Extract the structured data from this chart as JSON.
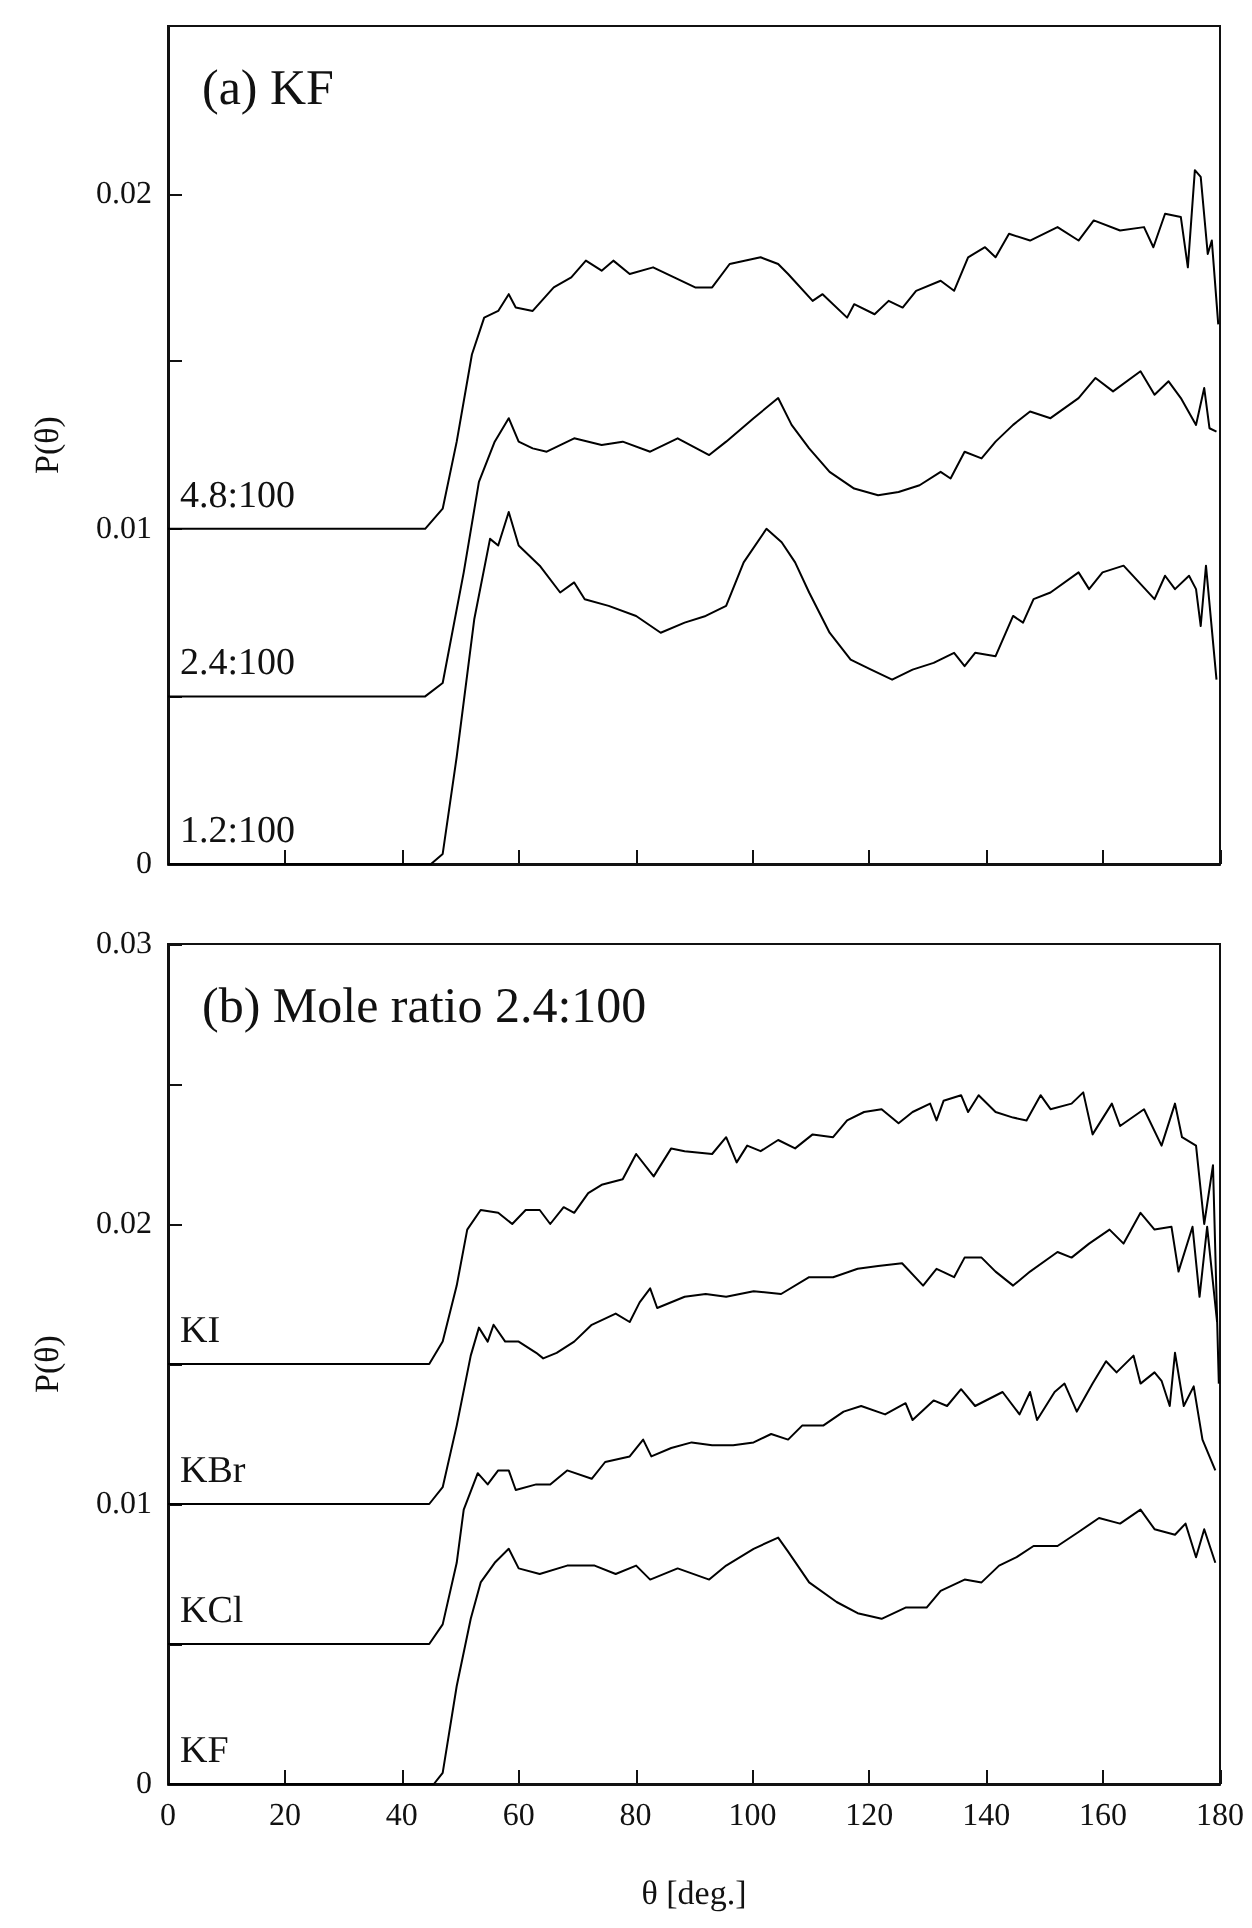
{
  "chart_data": [
    {
      "type": "line",
      "title": "(a) KF",
      "ylabel": "P(θ)",
      "xlim": [
        0,
        180
      ],
      "xticks": [
        0,
        20,
        40,
        60,
        80,
        100,
        120,
        140,
        160,
        180
      ],
      "ylim": [
        0,
        0.025
      ],
      "yticks": [
        0,
        {
          "value": 0.005,
          "label": null
        },
        0.01,
        {
          "value": 0.015,
          "label": null
        },
        0.02
      ],
      "tick_labels": "y",
      "grid": false,
      "legend": false,
      "marker": "none",
      "line_style": "solid",
      "series": [
        {
          "name": "4.8:100",
          "color": "#000000",
          "x": [
            0,
            44,
            47,
            49.4,
            52,
            54.1,
            56.5,
            58.3,
            59.5,
            62.4,
            66,
            69,
            71.5,
            74.2,
            76.2,
            79,
            83,
            86.6,
            90.2,
            93.1,
            96.1,
            101.4,
            104.4,
            106.1,
            110.3,
            112,
            116.2,
            117.4,
            120.9,
            123.3,
            125.7,
            128,
            132.2,
            134.5,
            136.9,
            139.8,
            141.6,
            143.9,
            147.5,
            152.2,
            155.8,
            158.4,
            162.9,
            167,
            168.6,
            170.6,
            173.3,
            174.5,
            175.7,
            176.7,
            177.9,
            178.6,
            179.7
          ],
          "values": [
            0.01,
            0.01,
            0.0106,
            0.0126,
            0.0152,
            0.0163,
            0.0165,
            0.017,
            0.0166,
            0.0165,
            0.0172,
            0.0175,
            0.018,
            0.0177,
            0.018,
            0.0176,
            0.0178,
            0.0175,
            0.0172,
            0.0172,
            0.0179,
            0.0181,
            0.0179,
            0.0176,
            0.0168,
            0.017,
            0.0163,
            0.0167,
            0.0164,
            0.0168,
            0.0166,
            0.0171,
            0.0174,
            0.0171,
            0.0181,
            0.0184,
            0.0181,
            0.0188,
            0.0186,
            0.019,
            0.0186,
            0.0192,
            0.0189,
            0.019,
            0.0184,
            0.0194,
            0.0193,
            0.0178,
            0.0207,
            0.0205,
            0.0182,
            0.0186,
            0.0161
          ]
        },
        {
          "name": "2.4:100",
          "color": "#000000",
          "x": [
            0,
            44,
            47,
            50.6,
            53.2,
            55.9,
            58.3,
            60,
            62.4,
            64.8,
            69.5,
            74.2,
            77.8,
            82.5,
            87.2,
            92.6,
            95.5,
            100.2,
            104.4,
            106.7,
            109.7,
            113.2,
            117.4,
            121.5,
            125,
            128.6,
            132.2,
            133.9,
            136.3,
            139.2,
            141.6,
            144.6,
            147.5,
            151,
            155.8,
            158.7,
            161.7,
            166.4,
            168.8,
            171.2,
            173.3,
            175.9,
            177.3,
            178.2,
            179.4
          ],
          "values": [
            0.005,
            0.005,
            0.0054,
            0.0087,
            0.0114,
            0.0126,
            0.0133,
            0.0126,
            0.0124,
            0.0123,
            0.0127,
            0.0125,
            0.0126,
            0.0123,
            0.0127,
            0.0122,
            0.0126,
            0.0133,
            0.0139,
            0.0131,
            0.0124,
            0.0117,
            0.0112,
            0.011,
            0.0111,
            0.0113,
            0.0117,
            0.0115,
            0.0123,
            0.0121,
            0.0126,
            0.0131,
            0.0135,
            0.0133,
            0.0139,
            0.0145,
            0.0141,
            0.0147,
            0.014,
            0.0144,
            0.0139,
            0.0131,
            0.0142,
            0.013,
            0.0129
          ]
        },
        {
          "name": "1.2:100",
          "color": "#000000",
          "x": [
            0,
            45,
            47,
            49.4,
            52.4,
            55.1,
            56.5,
            58.3,
            60,
            63.6,
            67.1,
            69.5,
            71.3,
            75.4,
            80.1,
            84.3,
            88.4,
            92,
            95.5,
            98.5,
            102.4,
            105,
            107.3,
            109.7,
            113.2,
            116.8,
            120.3,
            123.9,
            127.4,
            131,
            134.5,
            136.3,
            138.1,
            141.6,
            144.6,
            146.3,
            148.1,
            151,
            155.8,
            157.6,
            159.9,
            163.5,
            168.8,
            170.6,
            172.3,
            174.7,
            175.9,
            176.7,
            177.6,
            179.4
          ],
          "values": [
            0,
            0,
            0.0003,
            0.0032,
            0.0073,
            0.0097,
            0.0095,
            0.0105,
            0.0095,
            0.0089,
            0.0081,
            0.0084,
            0.0079,
            0.0077,
            0.0074,
            0.0069,
            0.0072,
            0.0074,
            0.0077,
            0.009,
            0.01,
            0.0096,
            0.009,
            0.0081,
            0.0069,
            0.0061,
            0.0058,
            0.0055,
            0.0058,
            0.006,
            0.0063,
            0.0059,
            0.0063,
            0.0062,
            0.0074,
            0.0072,
            0.0079,
            0.0081,
            0.0087,
            0.0082,
            0.0087,
            0.0089,
            0.0079,
            0.0086,
            0.0082,
            0.0086,
            0.0082,
            0.0071,
            0.0089,
            0.0055
          ]
        }
      ]
    },
    {
      "type": "line",
      "title": "(b) Mole ratio 2.4:100",
      "xlabel": "θ [deg.]",
      "ylabel": "P(θ)",
      "xlim": [
        0,
        180
      ],
      "xticks": [
        0,
        20,
        40,
        60,
        80,
        100,
        120,
        140,
        160,
        180
      ],
      "ylim": [
        0,
        0.03
      ],
      "yticks": [
        0,
        {
          "value": 0.005,
          "label": null
        },
        0.01,
        {
          "value": 0.015,
          "label": null
        },
        0.02,
        {
          "value": 0.025,
          "label": null
        },
        0.03
      ],
      "grid": false,
      "legend": false,
      "marker": "none",
      "line_style": "solid",
      "series": [
        {
          "name": "KI",
          "color": "#000000",
          "x": [
            0,
            44.7,
            47,
            49.4,
            51.2,
            53.5,
            56.5,
            58.9,
            61.2,
            63.6,
            65.4,
            67.7,
            69.5,
            71.9,
            74.2,
            77.8,
            80.1,
            83.1,
            86.1,
            88.4,
            93.1,
            95.5,
            97.3,
            99.1,
            101.4,
            104.4,
            107.3,
            110.3,
            113.8,
            116.2,
            119.1,
            122.1,
            125,
            127.4,
            130.4,
            131.5,
            132.7,
            135.7,
            136.9,
            138.7,
            141.6,
            144.6,
            146.9,
            149.3,
            151,
            154.6,
            156.6,
            158.2,
            161.5,
            162.9,
            167,
            170,
            172.3,
            173.5,
            175.9,
            177.3,
            178.8,
            179.8
          ],
          "values": [
            0.015,
            0.015,
            0.0158,
            0.0178,
            0.0198,
            0.0205,
            0.0204,
            0.02,
            0.0205,
            0.0205,
            0.02,
            0.0206,
            0.0204,
            0.0211,
            0.0214,
            0.0216,
            0.0225,
            0.0217,
            0.0227,
            0.0226,
            0.0225,
            0.0231,
            0.0222,
            0.0228,
            0.0226,
            0.023,
            0.0227,
            0.0232,
            0.0231,
            0.0237,
            0.024,
            0.0241,
            0.0236,
            0.024,
            0.0243,
            0.0237,
            0.0244,
            0.0246,
            0.024,
            0.0246,
            0.024,
            0.0238,
            0.0237,
            0.0246,
            0.0241,
            0.0243,
            0.0247,
            0.0232,
            0.0243,
            0.0235,
            0.0241,
            0.0228,
            0.0243,
            0.0231,
            0.0228,
            0.02,
            0.0221,
            0.0143
          ]
        },
        {
          "name": "KBr",
          "color": "#000000",
          "x": [
            0,
            44.7,
            47,
            49.4,
            51.8,
            53.2,
            54.7,
            55.7,
            57.7,
            60,
            63,
            64.2,
            66.5,
            69.5,
            72.5,
            76.6,
            79,
            80.7,
            82.5,
            83.7,
            88.4,
            92,
            95.5,
            100.2,
            104.9,
            109.7,
            113.8,
            118,
            121.5,
            125.6,
            129.2,
            131.5,
            134.5,
            136.3,
            139.2,
            141.6,
            144.6,
            147.5,
            152.2,
            154.6,
            157.6,
            161.1,
            163.5,
            166.4,
            168.8,
            171.7,
            172.9,
            175.3,
            176.5,
            177.8,
            179.5
          ],
          "values": [
            0.01,
            0.01,
            0.0106,
            0.0128,
            0.0153,
            0.0163,
            0.0158,
            0.0164,
            0.0158,
            0.0158,
            0.0154,
            0.0152,
            0.0154,
            0.0158,
            0.0164,
            0.0168,
            0.0165,
            0.0172,
            0.0177,
            0.017,
            0.0174,
            0.0175,
            0.0174,
            0.0176,
            0.0175,
            0.0181,
            0.0181,
            0.0184,
            0.0185,
            0.0186,
            0.0178,
            0.0184,
            0.0181,
            0.0188,
            0.0188,
            0.0183,
            0.0178,
            0.0183,
            0.019,
            0.0188,
            0.0193,
            0.0198,
            0.0193,
            0.0204,
            0.0198,
            0.0199,
            0.0183,
            0.0199,
            0.0174,
            0.0199,
            0.0165
          ]
        },
        {
          "name": "KCl",
          "color": "#000000",
          "x": [
            0,
            44.7,
            47,
            49.4,
            50.6,
            53,
            54.7,
            56.5,
            58.3,
            59.5,
            63,
            65.4,
            68.3,
            72.5,
            74.8,
            79,
            81.3,
            82.7,
            86.1,
            89.6,
            93.1,
            96.7,
            100.2,
            103.2,
            106.1,
            108.5,
            112.1,
            115.6,
            118.6,
            122.7,
            126.2,
            127.4,
            131,
            133.3,
            135.7,
            138.1,
            142.8,
            145.7,
            147.5,
            148.7,
            151.7,
            153.4,
            155.5,
            158.2,
            160.5,
            162.3,
            165.2,
            166.4,
            168.8,
            170,
            171.4,
            172.3,
            173.8,
            175.5,
            177,
            179.2
          ],
          "values": [
            0.005,
            0.005,
            0.0057,
            0.0079,
            0.0098,
            0.0111,
            0.0107,
            0.0112,
            0.0112,
            0.0105,
            0.0107,
            0.0107,
            0.0112,
            0.0109,
            0.0115,
            0.0117,
            0.0123,
            0.0117,
            0.012,
            0.0122,
            0.0121,
            0.0121,
            0.0122,
            0.0125,
            0.0123,
            0.0128,
            0.0128,
            0.0133,
            0.0135,
            0.0132,
            0.0136,
            0.013,
            0.0137,
            0.0135,
            0.0141,
            0.0135,
            0.014,
            0.0132,
            0.014,
            0.013,
            0.014,
            0.0143,
            0.0133,
            0.0143,
            0.0151,
            0.0147,
            0.0153,
            0.0143,
            0.0147,
            0.0144,
            0.0135,
            0.0154,
            0.0135,
            0.0142,
            0.0123,
            0.0112
          ]
        },
        {
          "name": "KF",
          "color": "#000000",
          "x": [
            0,
            45.5,
            47,
            49.4,
            51.8,
            53.5,
            55.9,
            58.3,
            60,
            63.6,
            68.3,
            73,
            76.6,
            80.1,
            82.5,
            87.2,
            92.6,
            95.5,
            100.2,
            104.4,
            106.1,
            109.7,
            114.4,
            118,
            122.1,
            126.2,
            129.8,
            132.2,
            136.3,
            139.2,
            142.2,
            145.2,
            148.1,
            152.2,
            155.8,
            159.3,
            162.9,
            166.4,
            168.8,
            172.3,
            174.1,
            175.9,
            177.3,
            179.2
          ],
          "values": [
            0,
            0,
            0.0004,
            0.0035,
            0.0059,
            0.0072,
            0.0079,
            0.0084,
            0.0077,
            0.0075,
            0.0078,
            0.0078,
            0.0075,
            0.0078,
            0.0073,
            0.0077,
            0.0073,
            0.0078,
            0.0084,
            0.0088,
            0.0083,
            0.0072,
            0.0065,
            0.0061,
            0.0059,
            0.0063,
            0.0063,
            0.0069,
            0.0073,
            0.0072,
            0.0078,
            0.0081,
            0.0085,
            0.0085,
            0.009,
            0.0095,
            0.0093,
            0.0098,
            0.0091,
            0.0089,
            0.0093,
            0.0081,
            0.0091,
            0.0079
          ]
        }
      ]
    }
  ]
}
